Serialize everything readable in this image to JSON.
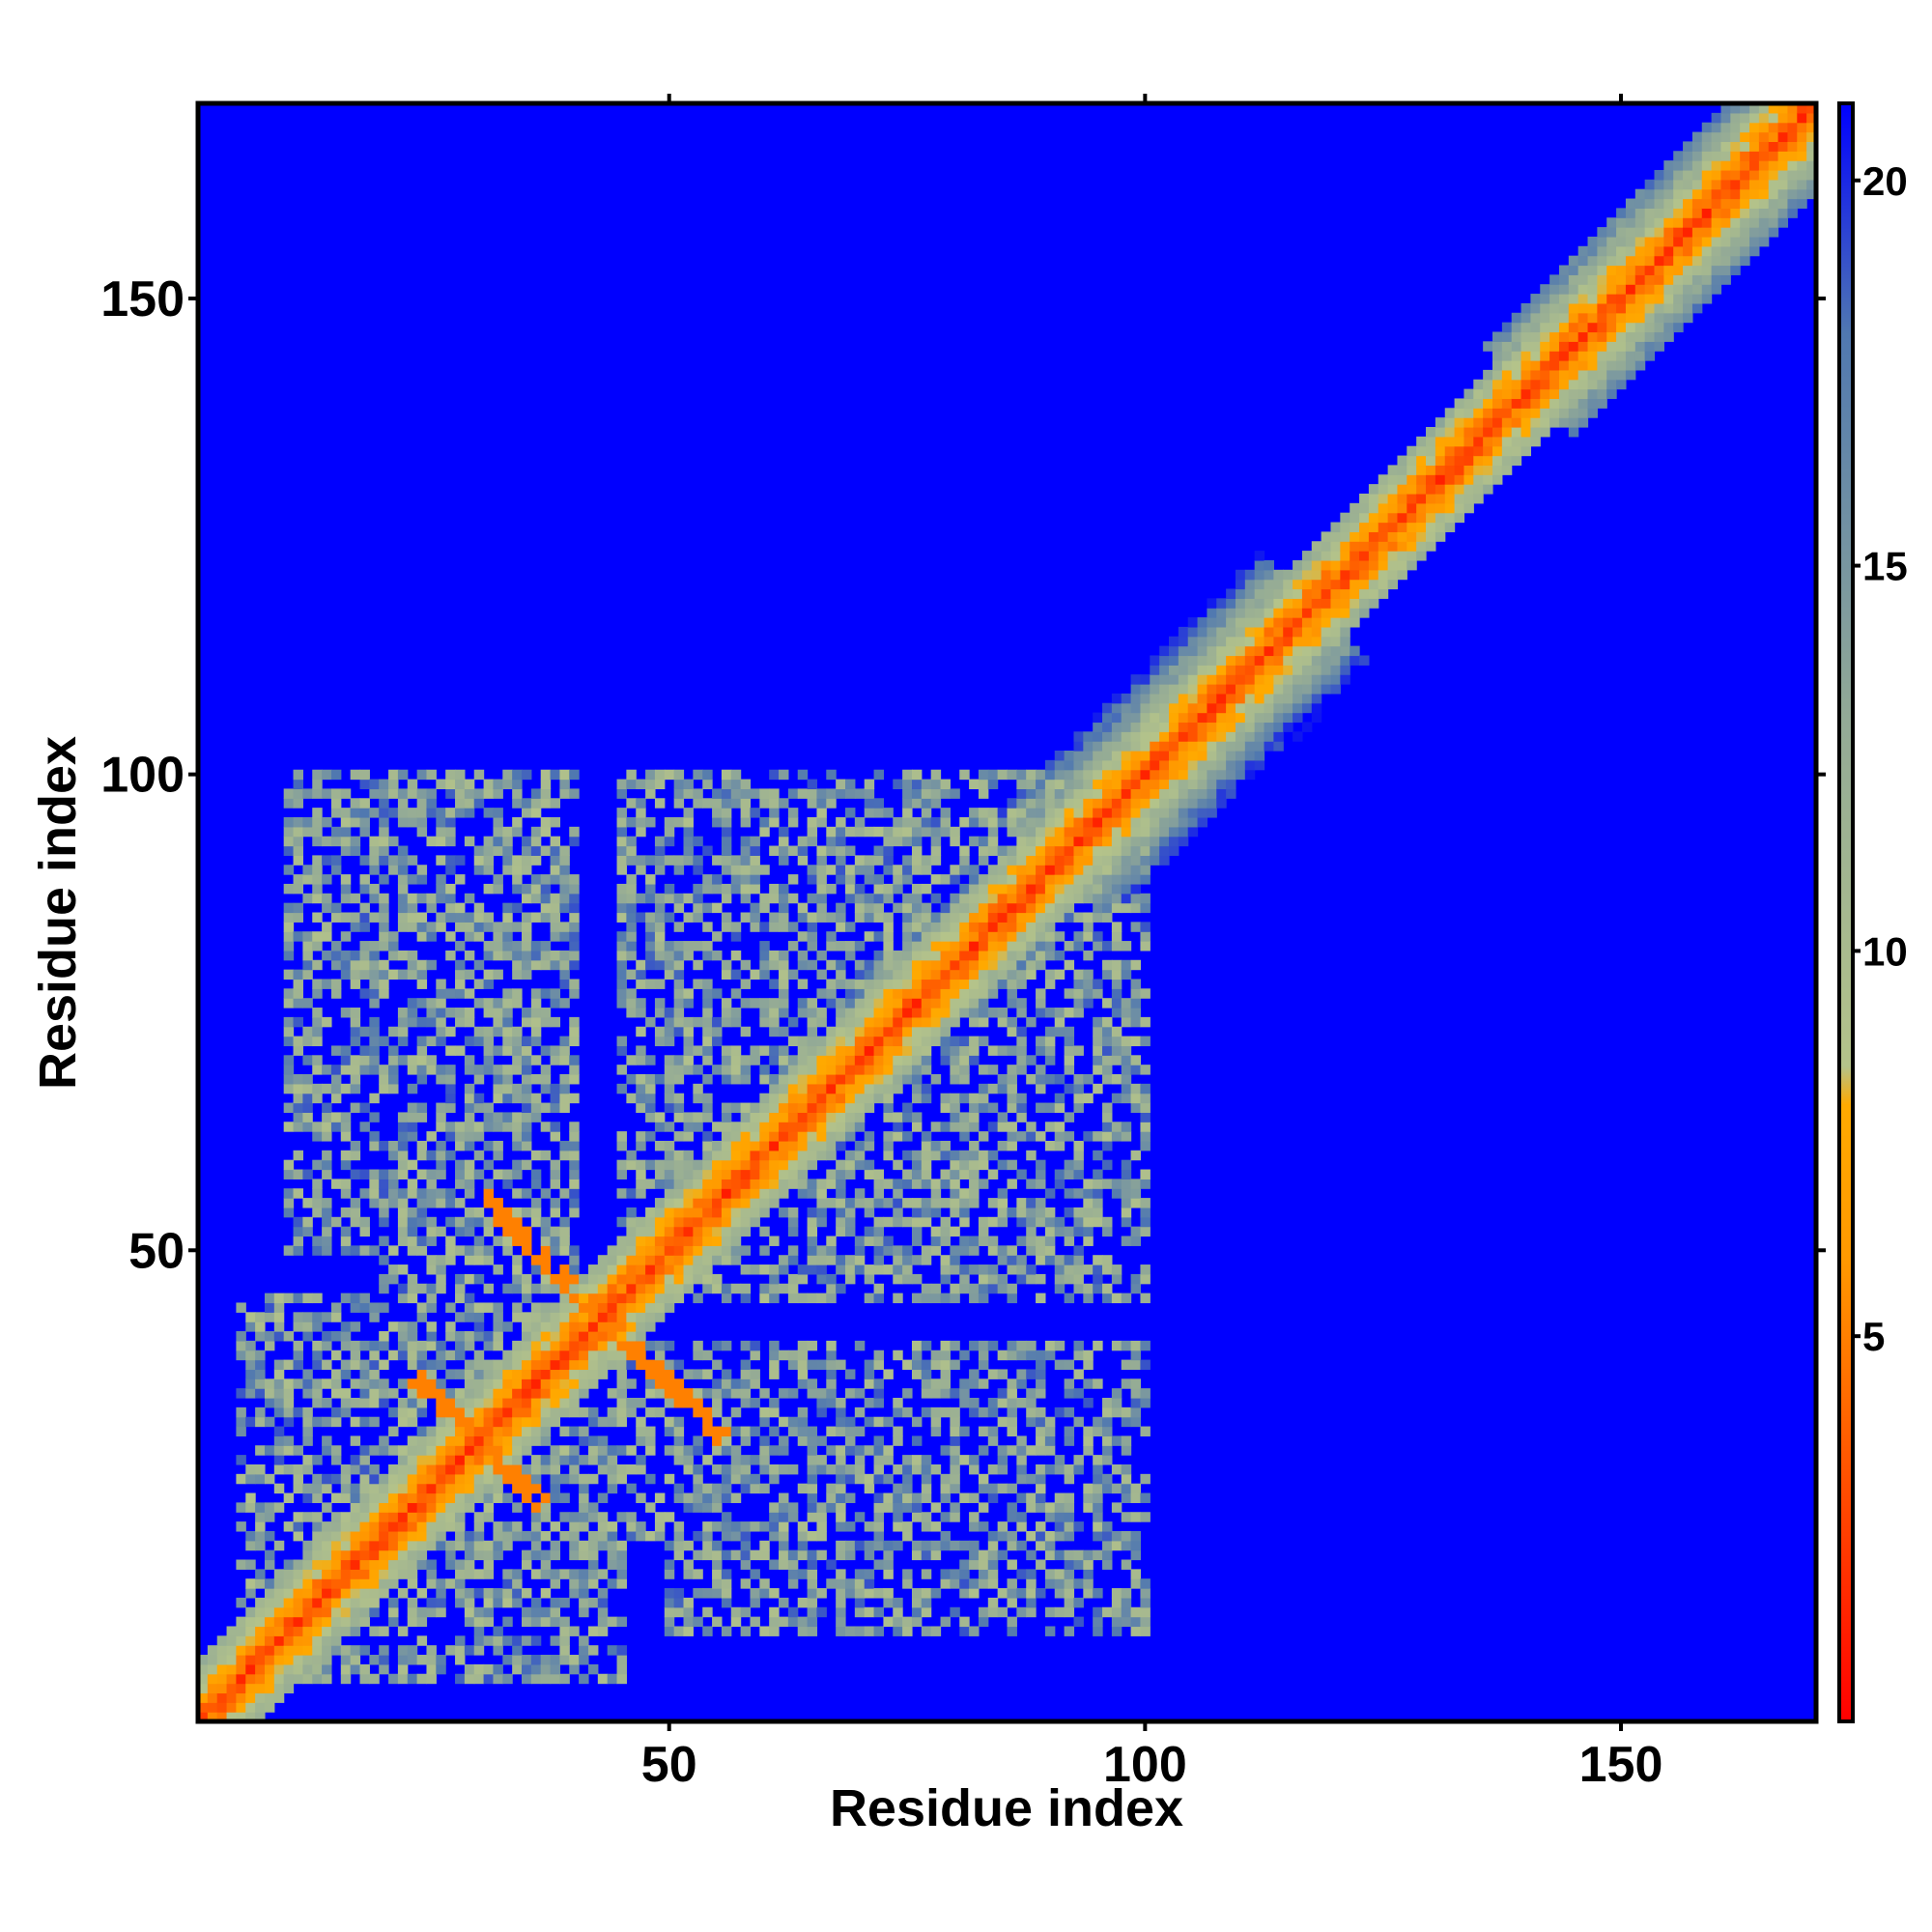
{
  "chart_data": {
    "type": "heatmap",
    "title": "",
    "xlabel": "Residue index",
    "ylabel": "Residue index",
    "xlim": [
      1,
      170
    ],
    "ylim": [
      1,
      170
    ],
    "x_ticks": [
      50,
      100,
      150
    ],
    "y_ticks": [
      50,
      100,
      150
    ],
    "colorbar": {
      "range": [
        0,
        21
      ],
      "ticks": [
        5,
        10,
        15,
        20
      ],
      "stops": [
        {
          "value": 0,
          "color": "#ff0000"
        },
        {
          "value": 6,
          "color": "#ff9900"
        },
        {
          "value": 8,
          "color": "#ffaa00"
        },
        {
          "value": 8.5,
          "color": "#b4c38a"
        },
        {
          "value": 13,
          "color": "#93aa96"
        },
        {
          "value": 18,
          "color": "#5078b0"
        },
        {
          "value": 21,
          "color": "#0000ff"
        }
      ]
    },
    "description_of_structure": {
      "diagonal": "red band of distance < 4 along i=j with green/gray halo widening between residues 95-115",
      "clusters": [
        {
          "x_range": [
            10,
            35
          ],
          "y_range": [
            50,
            100
          ],
          "level": "mid"
        },
        {
          "x_range": [
            45,
            100
          ],
          "y_range": [
            45,
            100
          ],
          "level": "mid"
        },
        {
          "x_range": [
            5,
            45
          ],
          "y_range": [
            5,
            40
          ],
          "level": "mid"
        },
        {
          "x_range": [
            45,
            100
          ],
          "y_range": [
            20,
            40
          ],
          "level": "mid"
        }
      ]
    },
    "background_color": "#0000ff",
    "grid": false,
    "legend": "colorbar-right"
  }
}
